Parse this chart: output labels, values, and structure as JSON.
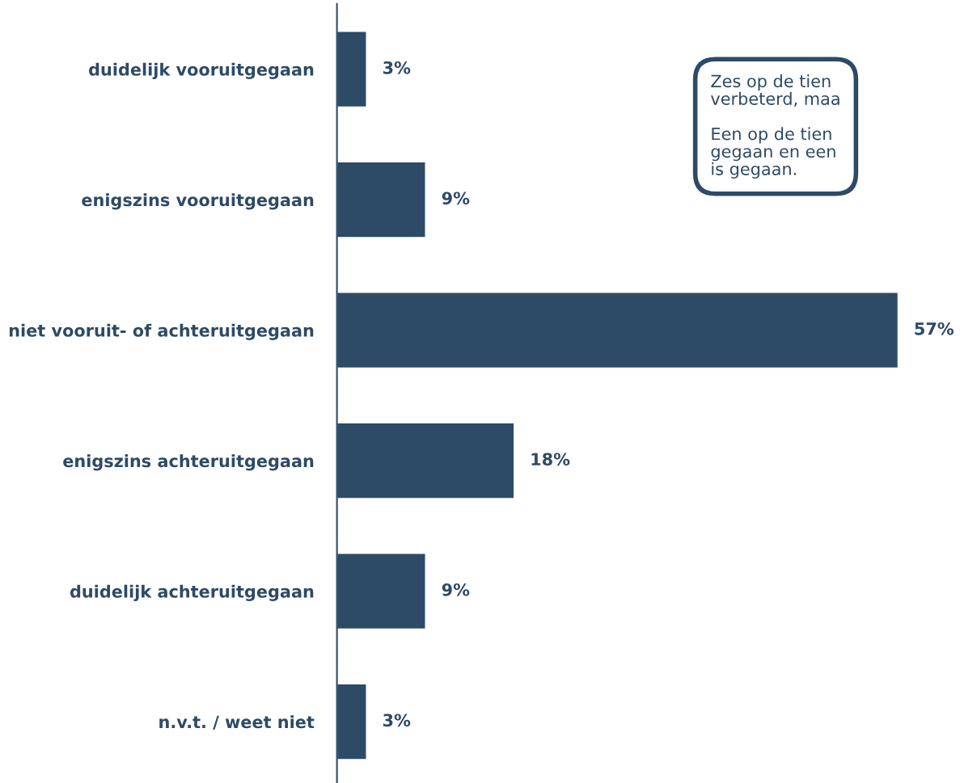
{
  "chart_data": {
    "type": "bar",
    "orientation": "horizontal",
    "categories": [
      "duidelijk vooruitgegaan",
      "enigszins vooruitgegaan",
      "niet vooruit- of achteruitgegaan",
      "enigszins achteruitgegaan",
      "duidelijk achteruitgegaan",
      "n.v.t. / weet niet"
    ],
    "values": [
      3,
      9,
      57,
      18,
      9,
      3
    ],
    "value_labels": [
      "3%",
      "9%",
      "57%",
      "18%",
      "9%",
      "3%"
    ],
    "color": "#2d4a66",
    "annotations": [
      "Zes op de tien\nverbeterd, maa\n\nEen op de tien\ngegaan en een\nis gegaan."
    ]
  }
}
